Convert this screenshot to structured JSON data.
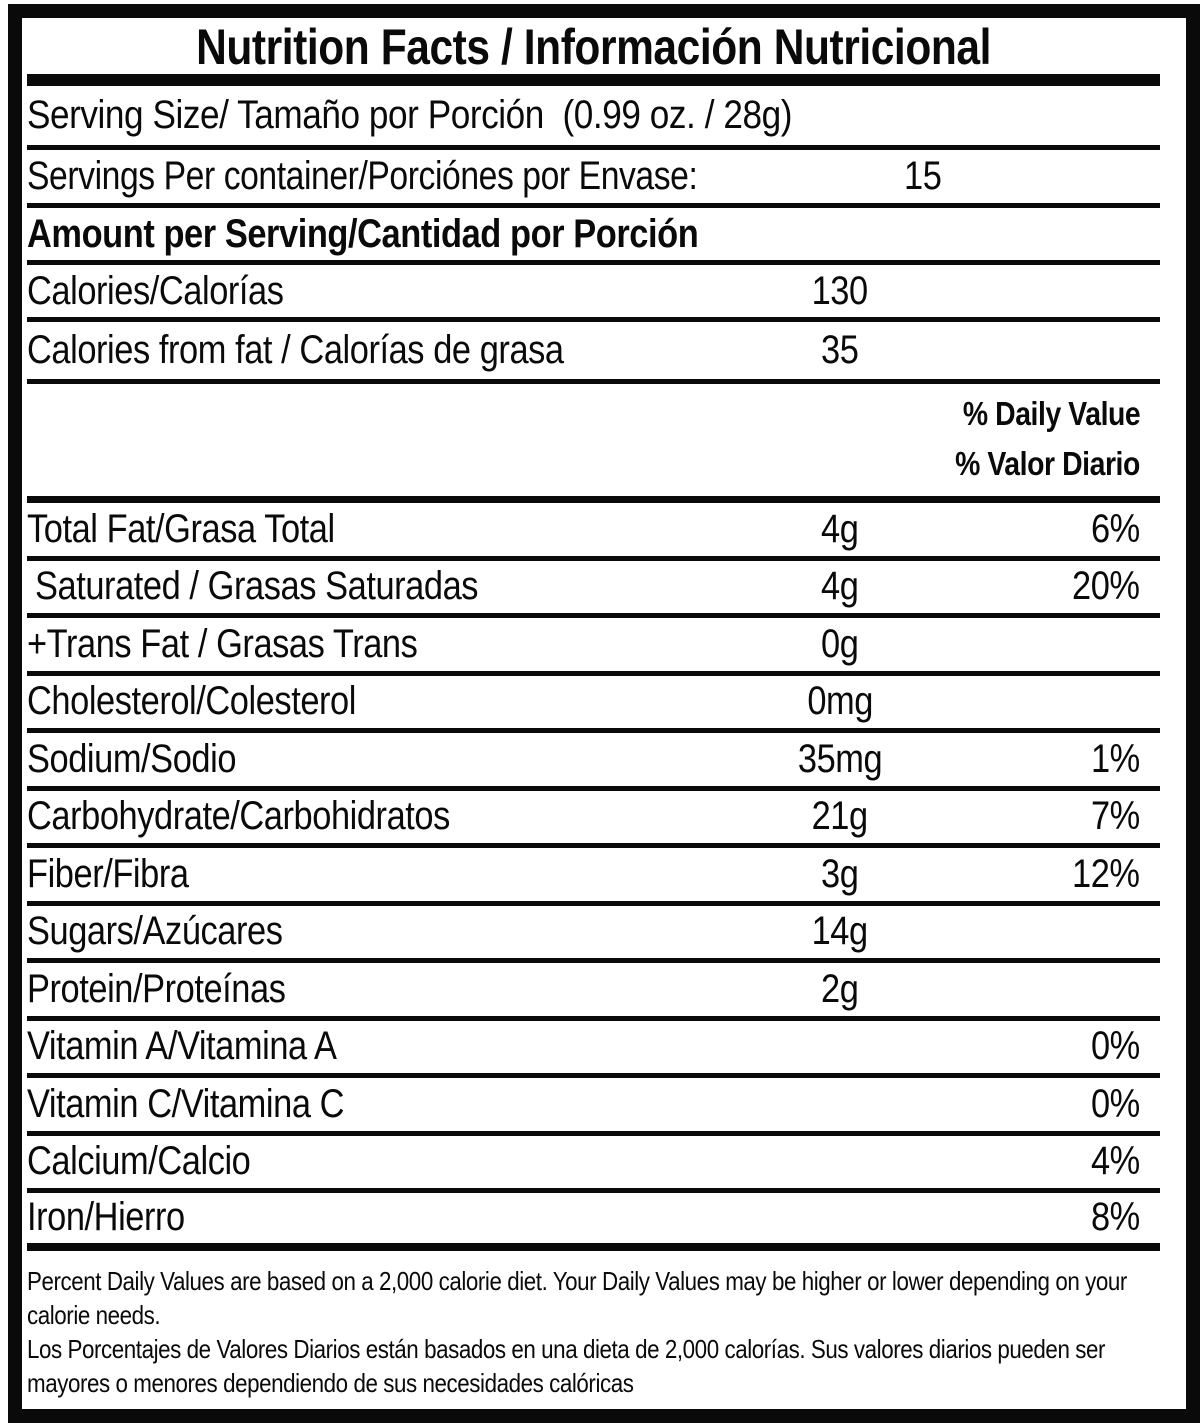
{
  "label": {
    "title": "Nutrition Facts / Información Nutricional",
    "serving_size": "Serving Size/ Tamaño por Porción  (0.99 oz. / 28g)",
    "servings_per_container": {
      "label": "Servings Per container/Porciónes por Envase:",
      "value": "15"
    },
    "amount_per_serving_header": "Amount per Serving/Cantidad por Porción",
    "calories": {
      "label": "Calories/Calorías",
      "value": "130"
    },
    "calories_from_fat": {
      "label": "Calories from fat / Calorías de grasa",
      "value": "35"
    },
    "daily_value_header": {
      "en": "% Daily Value",
      "es": "% Valor Diario"
    },
    "nutrients": [
      {
        "label": "Total Fat/Grasa Total",
        "amount": "4g",
        "dv": "6%"
      },
      {
        "label": "Saturated / Grasas Saturadas",
        "amount": "4g",
        "dv": "20%",
        "indent": true
      },
      {
        "label": "+Trans Fat / Grasas Trans",
        "amount": "0g",
        "dv": ""
      },
      {
        "label": "Cholesterol/Colesterol",
        "amount": "0mg",
        "dv": ""
      },
      {
        "label": "Sodium/Sodio",
        "amount": "35mg",
        "dv": "1%"
      },
      {
        "label": "Carbohydrate/Carbohidratos",
        "amount": "21g",
        "dv": "7%"
      },
      {
        "label": "Fiber/Fibra",
        "amount": "3g",
        "dv": "12%"
      },
      {
        "label": "Sugars/Azúcares",
        "amount": "14g",
        "dv": ""
      },
      {
        "label": "Protein/Proteínas",
        "amount": "2g",
        "dv": ""
      },
      {
        "label": "Vitamin A/Vitamina A",
        "amount": "",
        "dv": "0%"
      },
      {
        "label": "Vitamin C/Vitamina C",
        "amount": "",
        "dv": "0%"
      },
      {
        "label": "Calcium/Calcio",
        "amount": "",
        "dv": "4%"
      },
      {
        "label": "Iron/Hierro",
        "amount": "",
        "dv": "8%"
      }
    ],
    "footnote": {
      "en_lines": [
        "Percent Daily Values are based on a 2,000 calorie diet. Your Daily Values may be higher or lower depending on your",
        "calorie needs."
      ],
      "es_lines": [
        "Los Porcentajes de Valores Diarios están basados en una dieta de 2,000 calorías. Sus valores diarios pueden ser",
        "mayores o menores dependiendo de sus necesidades calóricas"
      ]
    },
    "colors": {
      "ink": "#0a0a0a",
      "paper": "#ffffff"
    }
  }
}
